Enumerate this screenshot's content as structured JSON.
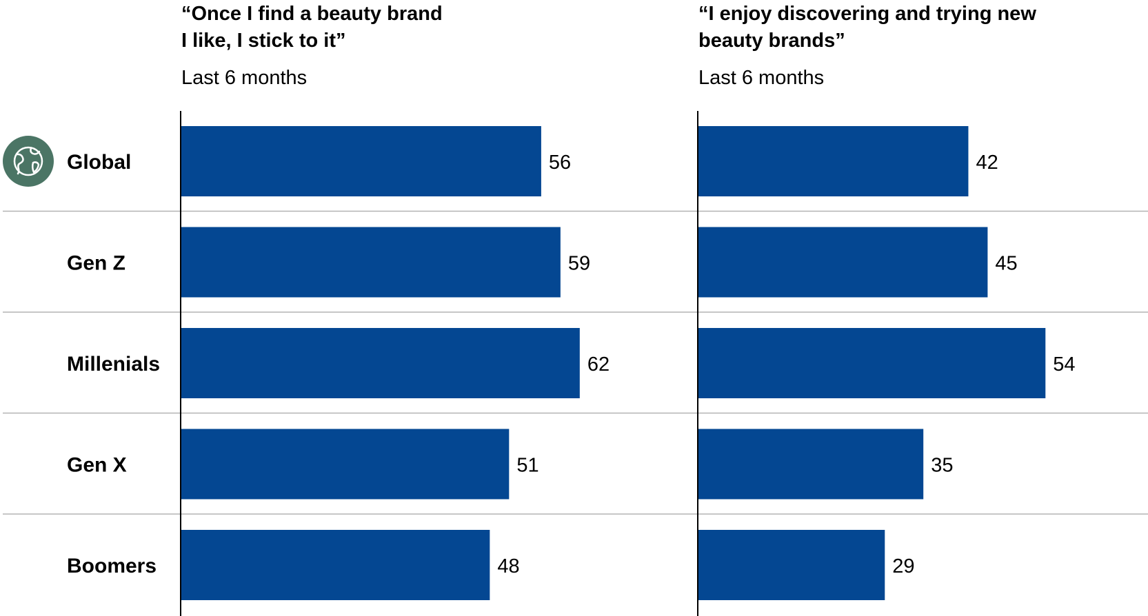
{
  "chart_data": {
    "type": "bar",
    "orientation": "horizontal",
    "categories": [
      "Global",
      "Gen Z",
      "Millenials",
      "Gen X",
      "Boomers"
    ],
    "category_icons": [
      "globe-icon",
      "",
      "",
      "",
      ""
    ],
    "panels": [
      {
        "title_lines": [
          "“Once I find a beauty brand",
          "I like, I stick to it”"
        ],
        "subtitle": "Last 6 months",
        "values": [
          56,
          59,
          62,
          51,
          48
        ],
        "value_labels": [
          "56",
          "59",
          "62",
          "51",
          "48"
        ]
      },
      {
        "title_lines": [
          "“I enjoy discovering and trying new",
          "beauty brands”"
        ],
        "subtitle": "Last 6 months",
        "values": [
          42,
          45,
          54,
          35,
          29
        ],
        "value_labels": [
          "42",
          "45",
          "54",
          "35",
          "29"
        ]
      }
    ],
    "xlim": [
      0,
      100
    ],
    "grid": false,
    "legend": "none",
    "colors": {
      "bar": "#044792",
      "icon_bg": "#4b7565",
      "icon_fg": "#ffffff",
      "axis": "#000000",
      "separator": "#b3b3b3"
    }
  }
}
